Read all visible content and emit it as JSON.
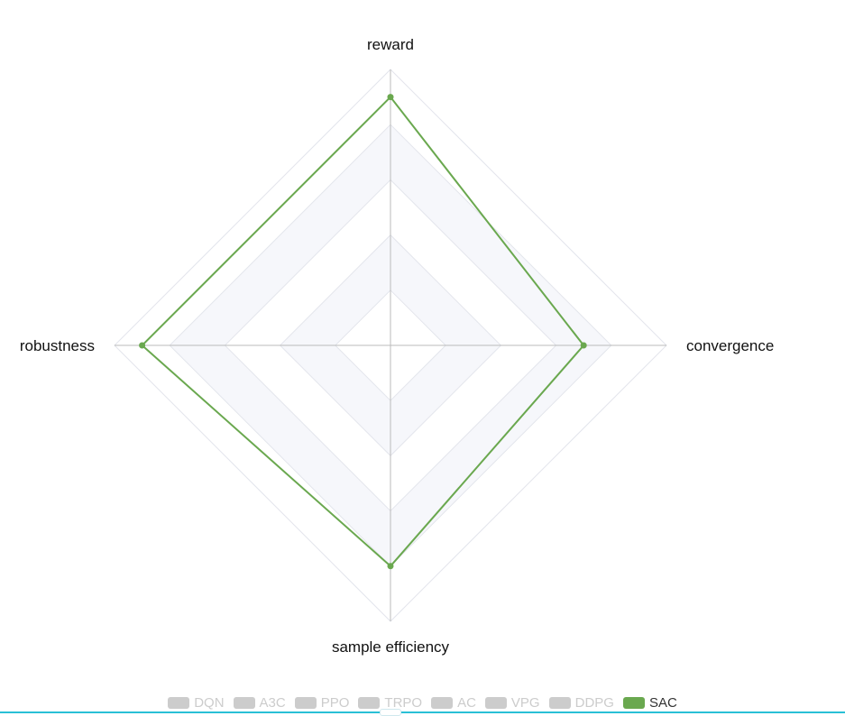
{
  "chart_data": {
    "type": "radar",
    "indicators": [
      {
        "name": "reward",
        "max": 1
      },
      {
        "name": "convergence",
        "max": 1
      },
      {
        "name": "sample efficiency",
        "max": 1
      },
      {
        "name": "robustness",
        "max": 1
      }
    ],
    "split_number": 5,
    "series": [
      {
        "name": "DQN",
        "values": [
          0,
          0,
          0,
          0
        ],
        "visible": false
      },
      {
        "name": "A3C",
        "values": [
          0,
          0,
          0,
          0
        ],
        "visible": false
      },
      {
        "name": "PPO",
        "values": [
          0,
          0,
          0,
          0
        ],
        "visible": false
      },
      {
        "name": "TRPO",
        "values": [
          0,
          0,
          0,
          0
        ],
        "visible": false
      },
      {
        "name": "AC",
        "values": [
          0,
          0,
          0,
          0
        ],
        "visible": false
      },
      {
        "name": "VPG",
        "values": [
          0,
          0,
          0,
          0
        ],
        "visible": false
      },
      {
        "name": "DDPG",
        "values": [
          0,
          0,
          0,
          0
        ],
        "visible": false
      },
      {
        "name": "SAC",
        "values": [
          0.9,
          0.7,
          0.8,
          0.9
        ],
        "visible": true
      }
    ],
    "legend_position": "bottom",
    "colors": {
      "active_series": "#6aa84f",
      "inactive_legend": "#cccccc",
      "split_area_a": "#ffffff",
      "split_area_b": "#f6f7fb",
      "split_line": "#e3e5ec",
      "axis_line": "#bbbbbb"
    }
  }
}
